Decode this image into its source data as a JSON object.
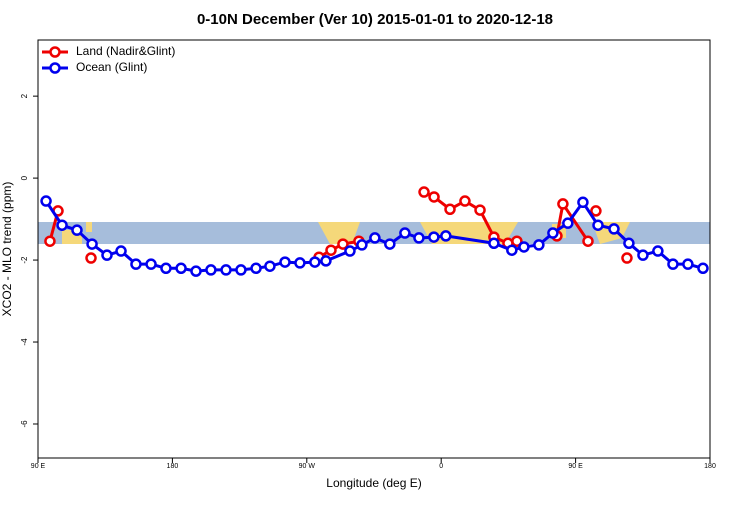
{
  "chart_data": {
    "type": "line",
    "title": "0-10N December (Ver 10)   2015-01-01 to 2020-12-18",
    "xlabel": "Longitude (deg E)",
    "ylabel": "XCO2 - MLO trend (ppm)",
    "xlim": [
      90,
      540
    ],
    "ylim": [
      -6.83,
      3.37
    ],
    "xticks": [
      {
        "value": 90,
        "label": "90 E"
      },
      {
        "value": 180,
        "label": "180"
      },
      {
        "value": 270,
        "label": "90 W"
      },
      {
        "value": 360,
        "label": "0"
      },
      {
        "value": 450,
        "label": "90 E"
      },
      {
        "value": 540,
        "label": "180"
      }
    ],
    "yticks": [
      -6,
      -4,
      -2,
      0,
      2
    ],
    "legend": "top-left",
    "series": [
      {
        "name": "Land (Nadir&Glint)",
        "color": "#ee0000",
        "x": [
          98.0,
          103.4,
          null,
          125.5,
          null,
          278.2,
          286.2,
          294.2,
          304.9,
          null,
          348.5,
          355.2,
          365.9,
          375.9,
          386.0,
          395.3,
          404.7,
          410.7,
          null,
          437.5,
          441.5,
          458.3,
          null,
          463.6,
          null,
          484.4
        ],
        "values": [
          -1.54,
          -0.8,
          null,
          -1.95,
          null,
          -1.93,
          -1.76,
          -1.61,
          -1.54,
          null,
          -0.34,
          -0.46,
          -0.76,
          -0.56,
          -0.78,
          -1.44,
          -1.59,
          -1.54,
          null,
          -1.41,
          -0.63,
          -1.54,
          null,
          -0.8,
          null,
          -1.95
        ]
      },
      {
        "name": "Ocean (Glint)",
        "color": "#0000ee",
        "x": [
          95.4,
          106.1,
          116.1,
          126.2,
          136.2,
          145.6,
          155.6,
          165.7,
          175.7,
          185.8,
          195.8,
          205.8,
          215.9,
          225.9,
          236.0,
          245.3,
          255.4,
          265.4,
          275.4,
          282.8,
          298.9,
          306.9,
          315.6,
          325.6,
          335.7,
          345.1,
          355.1,
          363.1,
          395.3,
          407.3,
          415.4,
          425.4,
          434.8,
          444.8,
          454.9,
          465.0,
          475.7,
          485.7,
          495.1,
          505.1,
          515.2,
          525.2,
          535.3
        ],
        "values": [
          -0.56,
          -1.15,
          -1.27,
          -1.61,
          -1.88,
          -1.78,
          -2.1,
          -2.1,
          -2.2,
          -2.2,
          -2.27,
          -2.24,
          -2.24,
          -2.24,
          -2.2,
          -2.15,
          -2.05,
          -2.07,
          -2.05,
          -2.02,
          -1.78,
          -1.63,
          -1.46,
          -1.61,
          -1.34,
          -1.46,
          -1.44,
          -1.41,
          -1.59,
          -1.76,
          -1.68,
          -1.63,
          -1.34,
          -1.1,
          -0.59,
          -1.15,
          -1.24,
          -1.59,
          -1.88,
          -1.78,
          -2.1,
          -2.1,
          -2.2
        ]
      }
    ]
  }
}
